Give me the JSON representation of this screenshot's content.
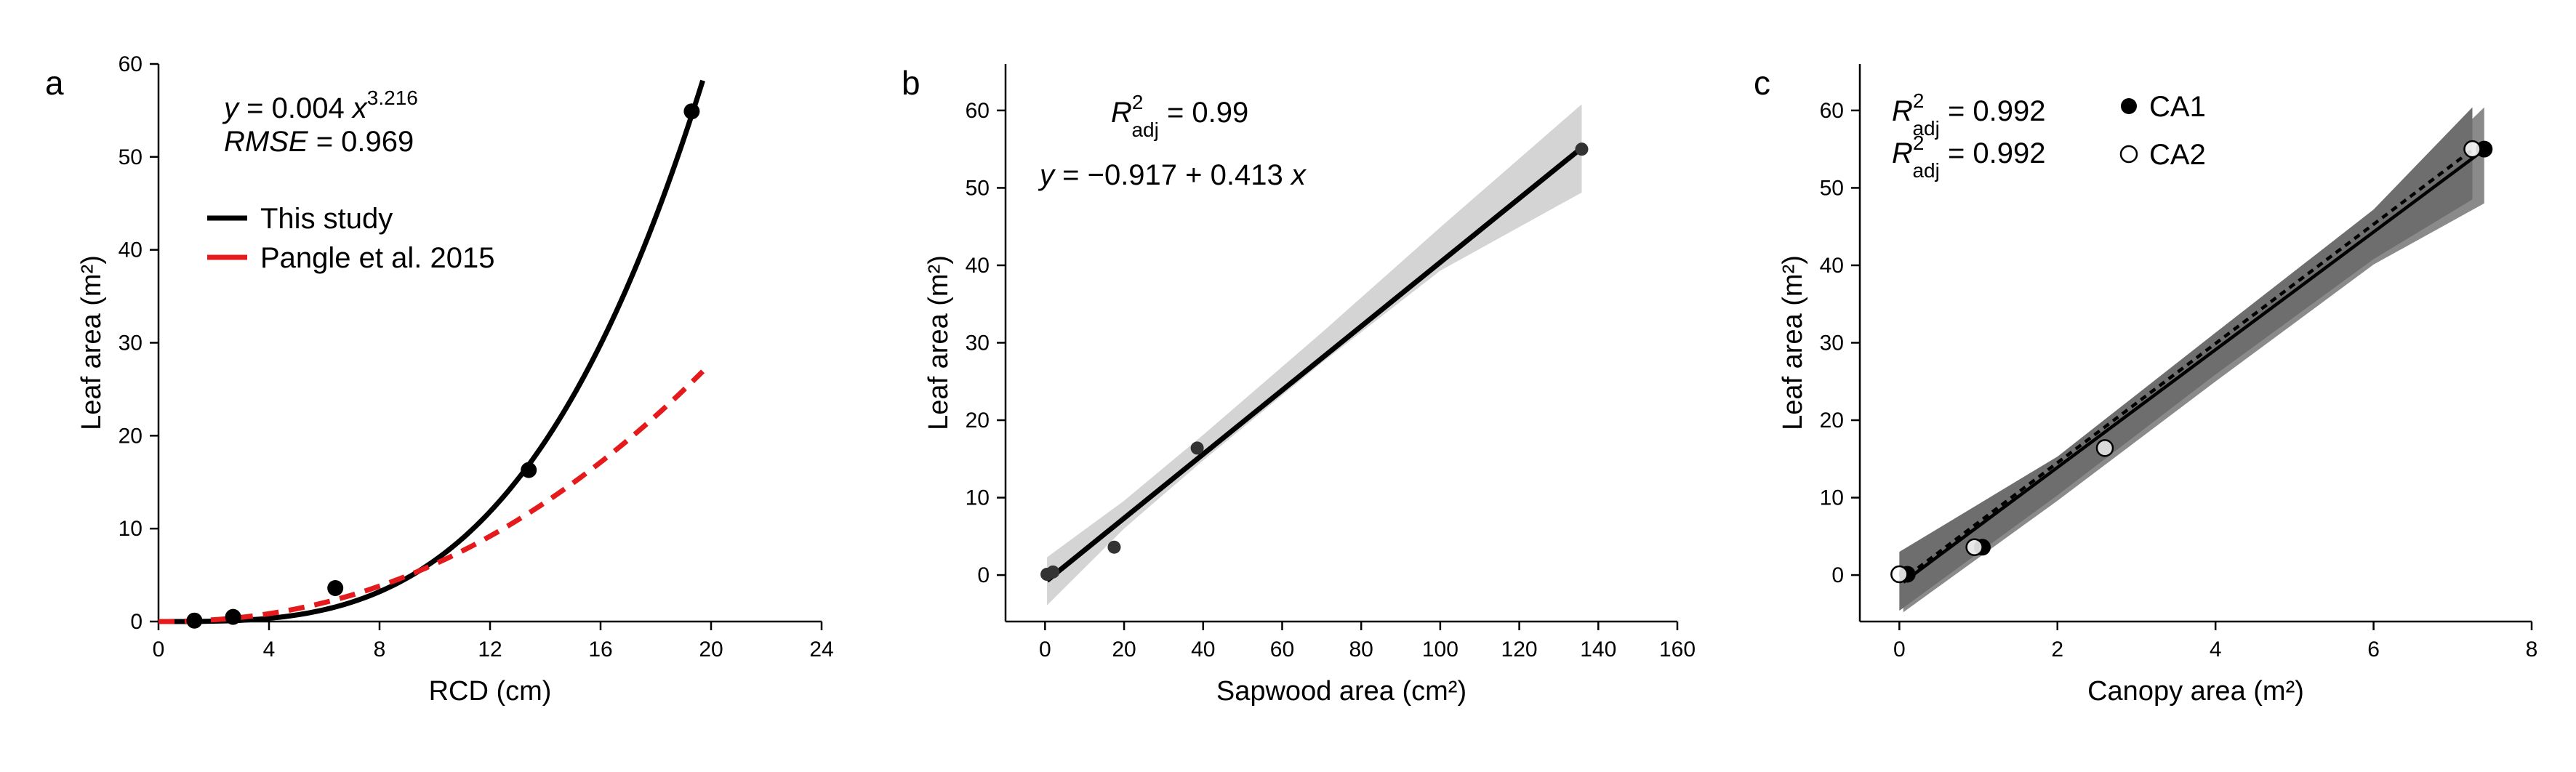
{
  "chart_data": [
    {
      "panel": "a",
      "type": "scatter",
      "xlabel": "RCD (cm)",
      "ylabel": "Leaf area (m²)",
      "xlim": [
        0,
        24
      ],
      "ylim": [
        0,
        60
      ],
      "xticks": [
        0,
        4,
        8,
        12,
        16,
        20,
        24
      ],
      "yticks": [
        0,
        10,
        20,
        30,
        40,
        50,
        60
      ],
      "points": [
        {
          "x": 1.3,
          "y": 0.1
        },
        {
          "x": 2.7,
          "y": 0.5
        },
        {
          "x": 6.4,
          "y": 3.6
        },
        {
          "x": 13.4,
          "y": 16.3
        },
        {
          "x": 19.3,
          "y": 54.9
        }
      ],
      "equation": "y = 0.004 x",
      "equation_exponent": "3.216",
      "rmse_label": "RMSE",
      "rmse_value": "= 0.969",
      "series": [
        {
          "name": "This study",
          "color": "#000000",
          "style": "solid",
          "model": "power",
          "a": 0.004,
          "b": 3.216,
          "x_range": [
            0,
            19.7
          ]
        },
        {
          "name": "Pangle et al. 2015",
          "color": "#e41a1c",
          "style": "dashed",
          "model": "power",
          "a": 0.0418,
          "b": 2.17,
          "x_range": [
            0,
            19.7
          ]
        }
      ],
      "legend_position": "top-left",
      "grid": false
    },
    {
      "panel": "b",
      "type": "scatter",
      "xlabel": "Sapwood area (cm²)",
      "ylabel": "Leaf area (m²)",
      "xlim": [
        -10,
        160
      ],
      "ylim": [
        -6,
        66
      ],
      "xticks": [
        0,
        20,
        40,
        60,
        80,
        100,
        120,
        140,
        160
      ],
      "yticks": [
        0,
        10,
        20,
        30,
        40,
        50,
        60
      ],
      "points": [
        {
          "x": 0.5,
          "y": 0.1
        },
        {
          "x": 2.0,
          "y": 0.4
        },
        {
          "x": 17.5,
          "y": 3.6
        },
        {
          "x": 38.5,
          "y": 16.4
        },
        {
          "x": 135.8,
          "y": 55.0
        }
      ],
      "r2_label": "R²adj = 0.99",
      "equation": "y = −0.917 + 0.413 x",
      "fit": {
        "intercept": -0.917,
        "slope": 0.413,
        "x_range": [
          0.5,
          135.8
        ]
      },
      "confidence_band": {
        "x": [
          0.5,
          20,
          40,
          70,
          100,
          135.8
        ],
        "lower": [
          -3.9,
          6.0,
          14.8,
          27.4,
          39.3,
          49.4
        ],
        "upper": [
          2.3,
          9.6,
          18.1,
          31.3,
          44.9,
          60.8
        ]
      },
      "grid": false
    },
    {
      "panel": "c",
      "type": "scatter",
      "xlabel": "Canopy area (m²)",
      "ylabel": "Leaf area (m²)",
      "xlim": [
        -0.5,
        8
      ],
      "ylim": [
        -6,
        66
      ],
      "xticks": [
        0,
        2,
        4,
        6,
        8
      ],
      "yticks": [
        0,
        10,
        20,
        30,
        40,
        50,
        60
      ],
      "series": [
        {
          "name": "CA1",
          "marker": "filled",
          "line_style": "solid",
          "r2_label": "R²adj = 0.992",
          "points": [
            {
              "x": 0.1,
              "y": 0.1
            },
            {
              "x": 1.05,
              "y": 3.6
            },
            {
              "x": 2.6,
              "y": 16.4
            },
            {
              "x": 7.4,
              "y": 55.0
            }
          ],
          "fit": {
            "intercept": -1.3,
            "slope": 7.6,
            "x_range": [
              0.05,
              7.4
            ]
          },
          "band": {
            "x": [
              0.05,
              2,
              4,
              6,
              7.4
            ],
            "lower": [
              -4.8,
              9.6,
              25.0,
              40.1,
              48.0
            ],
            "upper": [
              2.9,
              14.8,
              30.5,
              46.5,
              60.4
            ]
          }
        },
        {
          "name": "CA2",
          "marker": "open",
          "line_style": "dotted",
          "r2_label": "R²adj = 0.992",
          "points": [
            {
              "x": 0.0,
              "y": 0.1
            },
            {
              "x": 0.95,
              "y": 3.6
            },
            {
              "x": 2.6,
              "y": 16.4
            },
            {
              "x": 7.25,
              "y": 55.0
            }
          ],
          "fit": {
            "intercept": -0.9,
            "slope": 7.7,
            "x_range": [
              0.0,
              7.25
            ]
          },
          "band": {
            "x": [
              0.0,
              2,
              4,
              6,
              7.25
            ],
            "lower": [
              -4.6,
              10.3,
              25.9,
              40.8,
              48.5
            ],
            "upper": [
              3.0,
              15.3,
              31.3,
              47.2,
              60.4
            ]
          }
        }
      ],
      "grid": false
    }
  ]
}
